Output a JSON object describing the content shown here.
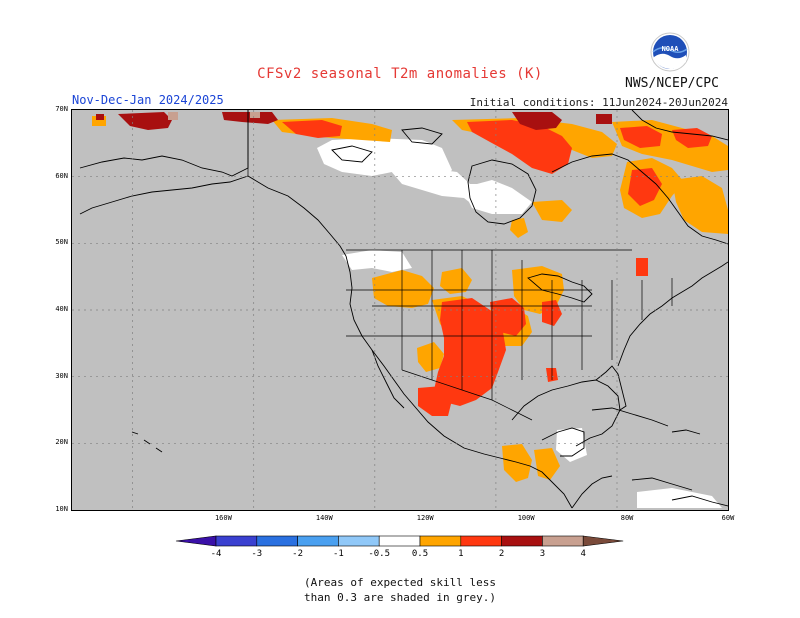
{
  "title": "CFSv2 seasonal T2m anomalies (K)",
  "season": "Nov-Dec-Jan 2024/2025",
  "initial_conditions": "Initial conditions: 11Jun2024-20Jun2024",
  "agency": "NWS/NCEP/CPC",
  "logo_text": "NOAA",
  "note_line1": "(Areas of expected skill less",
  "note_line2": "than 0.3 are shaded in grey.)",
  "map": {
    "lon_range": [
      -190,
      -60
    ],
    "lat_range": [
      10,
      70
    ],
    "lat_ticks": [
      "10N",
      "20N",
      "30N",
      "40N",
      "50N",
      "60N",
      "70N"
    ],
    "lon_ticks": [
      "160W",
      "140W",
      "120W",
      "100W",
      "80W",
      "60W"
    ],
    "colors": {
      "grey": "#c0c0c0",
      "neutral": "#ffffff",
      "orange": "#ffa500",
      "red_orange": "#ff3810",
      "dark_red": "#a81010",
      "rose": "#c8a090"
    }
  },
  "colorbar": {
    "labels": [
      "-4",
      "-3",
      "-2",
      "-1",
      "-0.5",
      "0.5",
      "1",
      "2",
      "3",
      "4"
    ],
    "colors": [
      "#3a10a8",
      "#3a40d0",
      "#2a70e0",
      "#4aa0f0",
      "#90c8f8",
      "#ffffff",
      "#ffa500",
      "#ff3810",
      "#a81010",
      "#c8a090",
      "#7a4a3a"
    ]
  }
}
